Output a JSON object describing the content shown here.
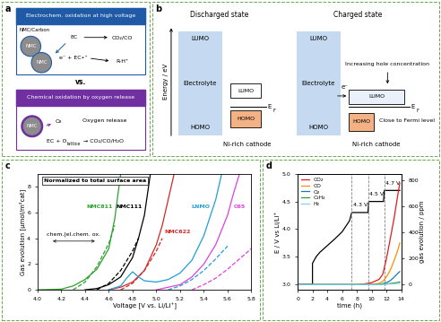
{
  "panel_labels": [
    "a",
    "b",
    "c",
    "d"
  ],
  "diagram_a": {
    "header_top": "Electrochem. oxidation at high voltage",
    "header_bottom": "Chemical oxidation by oxygen release",
    "particle": "NMC",
    "particle_support": "NMC/Carbon",
    "solvent": "EC",
    "electron_step": "e⁻ + EC•⁺",
    "products_top": [
      "CO₂/CO",
      "R-H⁺"
    ],
    "separator": "vs.",
    "oxygen": "O₂",
    "oxygen_caption": "Oxygen release",
    "reaction_bottom": [
      "EC + O",
      "lattice",
      "→ CO₂/CO/H₂O"
    ]
  },
  "diagram_b": {
    "axis_label": "Energy / eV",
    "states": [
      "Discharged state",
      "Charged state"
    ],
    "electrolyte": "Electrolyte",
    "lumo": "LUMO",
    "homo": "HOMO",
    "fermi": [
      "E",
      "F"
    ],
    "cathode": "Ni-rich cathode",
    "electron": "e⁻",
    "notes": [
      "Increasing hole concentration",
      "Close to Fermi level"
    ]
  },
  "chart_data": [
    {
      "type": "line",
      "annotations": [
        "Normalized to total surface area",
        "chem.|el.chem. ox."
      ],
      "x_label": "Voltage [V vs. Li/Li⁺]",
      "y_label": "Gas evolution [µmol/m²cat]",
      "xlim": [
        4.0,
        5.8
      ],
      "xticks": [
        4.0,
        4.2,
        4.4,
        4.6,
        4.8,
        5.0,
        5.2,
        5.4,
        5.6,
        5.8
      ],
      "ylim": [
        0,
        9
      ],
      "yticks": [
        0,
        2,
        4,
        6,
        8
      ],
      "series": [
        {
          "name": "NMC811",
          "color": "#2ca02c",
          "line_style": "solid",
          "x": [
            4.0,
            4.2,
            4.3,
            4.4,
            4.5,
            4.6,
            4.65,
            4.7
          ],
          "values": [
            0,
            0.05,
            0.3,
            0.8,
            1.6,
            3.2,
            5.5,
            9.0
          ]
        },
        {
          "color": "#2ca02c",
          "line_style": "dashed",
          "x": [
            4.3,
            4.4,
            4.5,
            4.6,
            4.65
          ],
          "values": [
            0,
            0.6,
            1.8,
            3.6,
            5.0
          ]
        },
        {
          "name": "NMC111",
          "color": "#000000",
          "line_style": "solid",
          "x": [
            4.4,
            4.5,
            4.6,
            4.7,
            4.8,
            4.85,
            4.9,
            4.95
          ],
          "values": [
            0,
            0.1,
            0.4,
            1.0,
            2.5,
            4.0,
            5.8,
            9.0
          ]
        },
        {
          "color": "#000000",
          "line_style": "dashed",
          "x": [
            4.5,
            4.6,
            4.7,
            4.8,
            4.85
          ],
          "values": [
            0,
            0.5,
            1.5,
            3.0,
            4.0
          ]
        },
        {
          "name": "NMC622",
          "color": "#d62728",
          "line_style": "solid",
          "x": [
            4.6,
            4.7,
            4.8,
            4.9,
            5.0,
            5.05,
            5.1,
            5.15
          ],
          "values": [
            0,
            0.2,
            0.6,
            1.5,
            3.5,
            5.0,
            7.0,
            9.0
          ]
        },
        {
          "color": "#d62728",
          "line_style": "dashed",
          "x": [
            4.7,
            4.8,
            4.9,
            5.0,
            5.05
          ],
          "values": [
            0,
            0.5,
            1.5,
            3.0,
            4.0
          ]
        },
        {
          "name": "LNMO",
          "color": "#1f9fd6",
          "line_style": "solid",
          "x": [
            4.6,
            4.7,
            4.75,
            4.8,
            4.85,
            4.9,
            5.0,
            5.1,
            5.2,
            5.3,
            5.4,
            5.5,
            5.55
          ],
          "values": [
            0,
            0.3,
            0.9,
            1.4,
            1.0,
            0.7,
            0.6,
            0.8,
            1.3,
            2.3,
            4.2,
            7.0,
            9.0
          ]
        },
        {
          "color": "#1f9fd6",
          "line_style": "dashed",
          "x": [
            5.1,
            5.2,
            5.3,
            5.4,
            5.5,
            5.6
          ],
          "values": [
            0,
            0.3,
            0.8,
            1.5,
            2.4,
            3.4
          ]
        },
        {
          "name": "C65",
          "color": "#e040e0",
          "line_style": "solid",
          "x": [
            5.0,
            5.2,
            5.3,
            5.4,
            5.5,
            5.6,
            5.65,
            5.7
          ],
          "values": [
            0,
            0.4,
            1.0,
            2.0,
            3.5,
            5.8,
            7.5,
            9.0
          ]
        },
        {
          "color": "#e040e0",
          "line_style": "dashed",
          "x": [
            5.3,
            5.4,
            5.5,
            5.6,
            5.7,
            5.8
          ],
          "values": [
            0,
            0.4,
            0.9,
            1.6,
            2.4,
            3.2
          ]
        }
      ]
    },
    {
      "type": "line",
      "x_label": "time (h)",
      "y_label": "E / V vs Li/Li⁺",
      "y2_label": "gas evolution / ppm",
      "xlim": [
        0,
        14
      ],
      "xticks": [
        0,
        2,
        4,
        6,
        8,
        10,
        12,
        14
      ],
      "ylim": [
        2.9,
        5.0
      ],
      "yticks": [
        3.0,
        3.5,
        4.0,
        4.5,
        5.0
      ],
      "y2lim": [
        -40,
        850
      ],
      "y2ticks": [
        0,
        200,
        400,
        600,
        800
      ],
      "legend": "upper left",
      "reference_lines": [
        {
          "x": 7.3,
          "label": "4.3 V"
        },
        {
          "x": 9.6,
          "label": "4.5 V"
        },
        {
          "x": 11.7,
          "label": "4.7 V"
        }
      ],
      "series": [
        {
          "color": "#000000",
          "axis": "y",
          "line_style": "solid",
          "x": [
            0,
            2,
            2,
            2.5,
            3,
            4,
            5,
            6,
            7,
            7.3,
            9.5,
            9.6,
            11.6,
            11.7,
            13.8
          ],
          "values": [
            3.0,
            3.0,
            3.38,
            3.5,
            3.58,
            3.7,
            3.82,
            3.95,
            4.15,
            4.3,
            4.3,
            4.5,
            4.5,
            4.7,
            4.7
          ]
        },
        {
          "name": "CO₂",
          "color": "#e41a1c",
          "axis": "y2",
          "line_style": "solid",
          "x": [
            0,
            8,
            9,
            10,
            11,
            11.5,
            12,
            12.5,
            13,
            13.5,
            13.8
          ],
          "values": [
            0,
            0,
            5,
            15,
            40,
            80,
            200,
            350,
            500,
            680,
            780
          ]
        },
        {
          "name": "CO",
          "color": "#ff8c00",
          "axis": "y2",
          "line_style": "solid",
          "x": [
            0,
            10,
            11,
            11.5,
            12,
            12.5,
            13,
            13.5,
            13.8
          ],
          "values": [
            0,
            0,
            10,
            25,
            60,
            110,
            180,
            260,
            320
          ]
        },
        {
          "name": "O₂",
          "color": "#1f77b4",
          "axis": "y2",
          "line_style": "solid",
          "x": [
            0,
            11,
            12,
            12.5,
            13,
            13.5,
            13.8
          ],
          "values": [
            0,
            0,
            15,
            30,
            55,
            85,
            100
          ]
        },
        {
          "name": "C₂H₄",
          "color": "#2ca02c",
          "axis": "y2",
          "line_style": "solid",
          "x": [
            0,
            11,
            12,
            13,
            13.8
          ],
          "values": [
            0,
            0,
            5,
            12,
            20
          ]
        },
        {
          "name": "H₂",
          "color": "#87ceeb",
          "axis": "y2",
          "line_style": "solid",
          "x": [
            0,
            11,
            12,
            13,
            13.8
          ],
          "values": [
            0,
            0,
            3,
            6,
            10
          ]
        }
      ]
    }
  ]
}
